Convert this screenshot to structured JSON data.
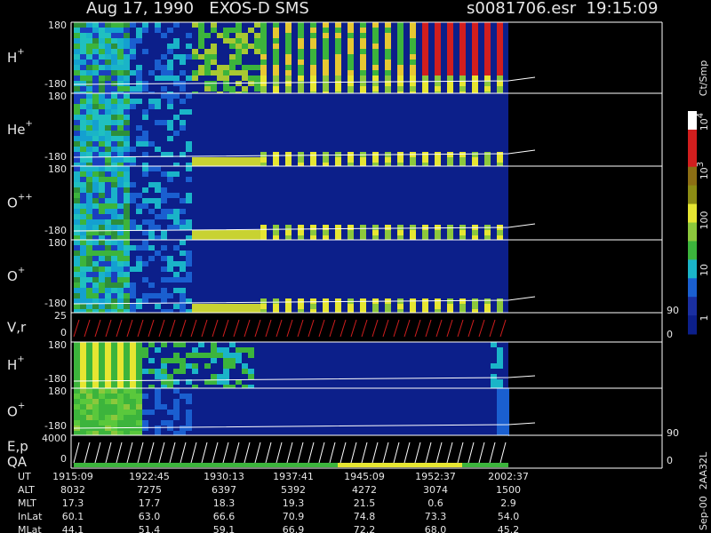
{
  "header": {
    "title": "Aug 17, 1990   EXOS-D SMS",
    "file": "s0081706.esr  19:15:09"
  },
  "panels": [
    {
      "label": "H",
      "sup": "+",
      "top": "180",
      "bottom": "-180"
    },
    {
      "label": "He",
      "sup": "+",
      "top": "180",
      "bottom": "-180"
    },
    {
      "label": "O",
      "sup": "++",
      "top": "180",
      "bottom": "-180"
    },
    {
      "label": "O",
      "sup": "+",
      "top": "180",
      "bottom": "-180"
    },
    {
      "label": "V,r",
      "top": "25",
      "bottom": "0",
      "right_top": "90",
      "right_bottom": "0"
    },
    {
      "label": "H",
      "sup": "+",
      "top": "180",
      "bottom": "-180"
    },
    {
      "label": "O",
      "sup": "+",
      "top": "180",
      "bottom": "-180"
    },
    {
      "label": "E,p",
      "label2": "QA",
      "top": "4000",
      "bottom": "0",
      "right_top": "90",
      "right_bottom": "0"
    }
  ],
  "colorbar": {
    "title": "Ct/Smp",
    "labels": [
      {
        "base": "10",
        "exp": "4"
      },
      {
        "base": "10",
        "exp": "3"
      },
      "100",
      "10",
      "1"
    ]
  },
  "table": {
    "rows": [
      {
        "label": "UT",
        "values": [
          "1915:09",
          "1922:45",
          "1930:13",
          "1937:41",
          "1945:09",
          "1952:37",
          "2002:37"
        ]
      },
      {
        "label": "ALT",
        "values": [
          "8032",
          "7275",
          "6397",
          "5392",
          "4272",
          "3074",
          "1500"
        ]
      },
      {
        "label": "MLT",
        "values": [
          "17.3",
          "17.7",
          "18.3",
          "19.3",
          "21.5",
          "0.6",
          "2.9"
        ]
      },
      {
        "label": "InLat",
        "values": [
          "60.1",
          "63.0",
          "66.6",
          "70.9",
          "74.8",
          "73.3",
          "54.0"
        ]
      },
      {
        "label": "MLat",
        "values": [
          "44.1",
          "51.4",
          "59.1",
          "66.9",
          "72.2",
          "68.0",
          "45.2"
        ]
      }
    ]
  },
  "footer": "Sep-00  2AA32L"
}
